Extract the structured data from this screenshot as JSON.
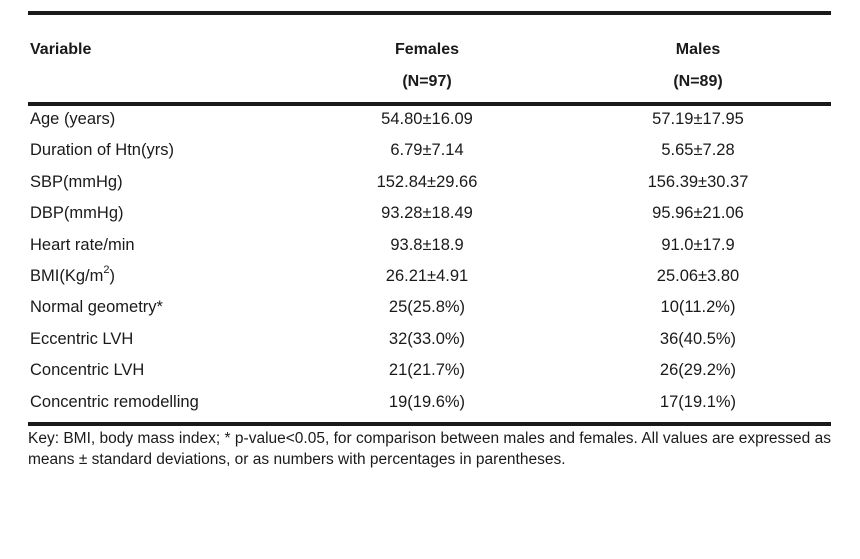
{
  "table": {
    "headers": {
      "variable": "Variable",
      "females": "Females",
      "females_n": "(N=97)",
      "males": "Males",
      "males_n": "(N=89)"
    },
    "rows": [
      {
        "variable": "Age (years)",
        "females": "54.80±16.09",
        "males": "57.19±17.95"
      },
      {
        "variable": "Duration of Htn(yrs)",
        "females": "6.79±7.14",
        "males": "5.65±7.28"
      },
      {
        "variable": "SBP(mmHg)",
        "females": "152.84±29.66",
        "males": "156.39±30.37"
      },
      {
        "variable": "DBP(mmHg)",
        "females": "93.28±18.49",
        "males": "95.96±21.06"
      },
      {
        "variable": "Heart rate/min",
        "females": "93.8±18.9",
        "males": "91.0±17.9"
      },
      {
        "variable_prefix": "BMI(Kg/m",
        "variable_sup": "2",
        "variable_suffix": ")",
        "females": "26.21±4.91",
        "males": "25.06±3.80"
      },
      {
        "variable": "Normal geometry*",
        "females": "25(25.8%)",
        "males": "10(11.2%)"
      },
      {
        "variable": "Eccentric LVH",
        "females": "32(33.0%)",
        "males": "36(40.5%)"
      },
      {
        "variable": "Concentric LVH",
        "females": "21(21.7%)",
        "males": "26(29.2%)"
      },
      {
        "variable": "Concentric remodelling",
        "females": "19(19.6%)",
        "males": "17(19.1%)"
      }
    ],
    "key": "Key: BMI, body mass index; * p-value<0.05, for comparison between males and females. All values are expressed as means ± standard deviations, or as numbers with percentages in parentheses."
  }
}
